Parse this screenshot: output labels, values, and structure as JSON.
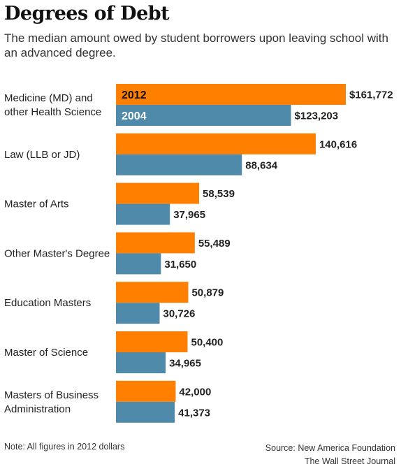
{
  "title": "Degrees of Debt",
  "subtitle": "The median amount owed by student borrowers upon leaving school with an advanced degree.",
  "note": "Note: All figures in 2012 dollars",
  "source": "Source: New America Foundation",
  "credit": "The Wall Street Journal",
  "colors": {
    "series_2012": "#ff7f00",
    "series_2004": "#4f8aab"
  },
  "chart_data": {
    "type": "bar",
    "orientation": "horizontal",
    "categories": [
      "Medicine (MD) and other Health Science",
      "Law (LLB or JD)",
      "Master of Arts",
      "Other Master's Degree",
      "Education Masters",
      "Master of Science",
      "Masters of Business Administration"
    ],
    "category_lines": [
      [
        "Medicine (MD) and",
        "other Health Science"
      ],
      [
        "Law (LLB or JD)"
      ],
      [
        "Master of Arts"
      ],
      [
        "Other Master's Degree"
      ],
      [
        "Education Masters"
      ],
      [
        "Master of Science"
      ],
      [
        "Masters of Business",
        "Administration"
      ]
    ],
    "series": [
      {
        "name": "2012",
        "values": [
          161772,
          140616,
          58539,
          55489,
          50879,
          50400,
          42000
        ],
        "labels": [
          "$161,772",
          "140,616",
          "58,539",
          "55,489",
          "50,879",
          "50,400",
          "42,000"
        ]
      },
      {
        "name": "2004",
        "values": [
          123203,
          88634,
          37965,
          31650,
          30726,
          34965,
          41373
        ],
        "labels": [
          "$123,203",
          "88,634",
          "37,965",
          "31,650",
          "30,726",
          "34,965",
          "41,373"
        ]
      }
    ],
    "legend": "inside first bars",
    "xlim": [
      0,
      161772
    ]
  }
}
